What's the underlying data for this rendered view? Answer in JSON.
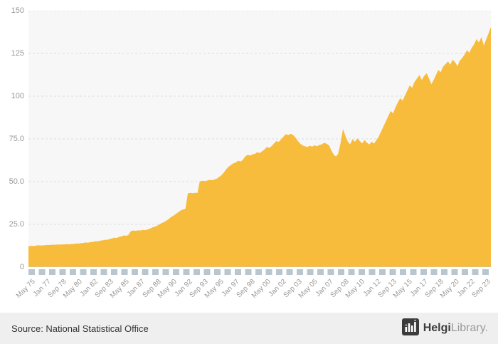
{
  "footer": {
    "source": "Source: National Statistical Office",
    "brand_bold": "Helgi",
    "brand_light": "Library."
  },
  "chart_data": {
    "type": "area",
    "title": "",
    "xlabel": "",
    "ylabel": "",
    "x_start": "May 1975",
    "x_end": "Dec 2023",
    "x_unit": "quarterly",
    "color": "#f8bc3d",
    "plot_bg": "#f7f7f7",
    "grid_color": "#dcdcdc",
    "axis_color": "#c9c9c9",
    "tick_block_color": "#b9c6cf",
    "ylim": [
      0,
      150
    ],
    "yticks": [
      {
        "v": 0,
        "label": "0"
      },
      {
        "v": 25,
        "label": "25.0"
      },
      {
        "v": 50,
        "label": "50.0"
      },
      {
        "v": 75,
        "label": "75.0"
      },
      {
        "v": 100,
        "label": "100"
      },
      {
        "v": 125,
        "label": "125"
      },
      {
        "v": 150,
        "label": "150"
      }
    ],
    "xticks": [
      "May 75",
      "Jan 77",
      "Sep 78",
      "May 80",
      "Jan 82",
      "Sep 83",
      "May 85",
      "Jan 87",
      "Sep 88",
      "May 90",
      "Jan 92",
      "Sep 93",
      "May 95",
      "Jan 97",
      "Sep 98",
      "May 00",
      "Jan 02",
      "Sep 03",
      "May 05",
      "Jan 07",
      "Sep 08",
      "May 10",
      "Jan 12",
      "Sep 13",
      "May 15",
      "Jan 17",
      "Sep 18",
      "May 20",
      "Jan 22",
      "Sep 23"
    ],
    "values": [
      12,
      12.2,
      12.1,
      12.3,
      12.6,
      12.4,
      12.5,
      12.6,
      12.8,
      12.7,
      12.9,
      12.8,
      13,
      12.9,
      13.1,
      13,
      13.2,
      13.1,
      13.3,
      13.3,
      13.6,
      13.5,
      13.8,
      13.9,
      14.2,
      14.1,
      14.4,
      14.5,
      14.9,
      14.8,
      15.2,
      15.4,
      15.8,
      15.7,
      16.2,
      16.5,
      17,
      16.8,
      17.4,
      17.8,
      18.3,
      18.1,
      18.6,
      20.8,
      21.2,
      21,
      21.3,
      21.2,
      21.6,
      21.4,
      21.8,
      22.3,
      23,
      23.4,
      24,
      24.8,
      25.6,
      26.2,
      27,
      28,
      29.2,
      30,
      31,
      32,
      33,
      33.5,
      34,
      43,
      43.2,
      43,
      43.3,
      43.1,
      50,
      50.3,
      50.1,
      50.4,
      50.8,
      50.6,
      51,
      51.5,
      52.5,
      53.5,
      55,
      57,
      58.5,
      59.5,
      60.5,
      61,
      62,
      61.5,
      62.5,
      64.5,
      65.5,
      65,
      65.8,
      66,
      67,
      66.5,
      67.5,
      68.5,
      70,
      69.5,
      70.5,
      72,
      73.5,
      73,
      74.5,
      76,
      77.5,
      77,
      77.8,
      77,
      75.5,
      73.5,
      72,
      71,
      70.5,
      70,
      70.8,
      70.2,
      71,
      70.5,
      71.2,
      71.5,
      72.5,
      72,
      71,
      68,
      65.5,
      64.5,
      66,
      72,
      80,
      76,
      73,
      71.5,
      74.5,
      73,
      75,
      73.5,
      72,
      74,
      72.5,
      71.5,
      73,
      72,
      74,
      76,
      79,
      82,
      85,
      88,
      91,
      89.5,
      93,
      96,
      98.5,
      97,
      100,
      103,
      106,
      104.5,
      108,
      110,
      112,
      109,
      111.5,
      113,
      110,
      106.5,
      109,
      112,
      115,
      113.5,
      117,
      118.5,
      120,
      118,
      121,
      119.5,
      117,
      120.5,
      122,
      124,
      126.5,
      125,
      128,
      130,
      133,
      131,
      134,
      129,
      132.5,
      136,
      140
    ]
  }
}
